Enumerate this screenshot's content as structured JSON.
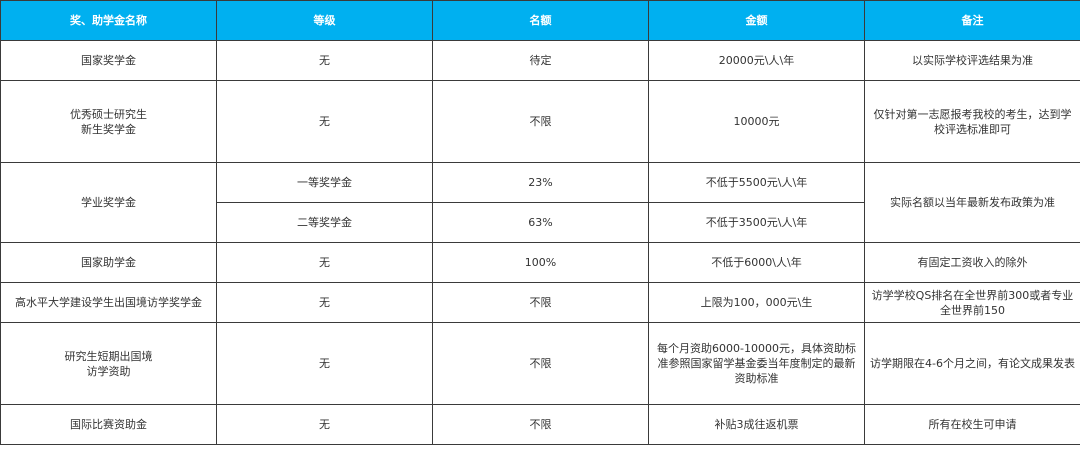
{
  "header_color": "#00b0f0",
  "headers": [
    "奖、助学金名称",
    "等级",
    "名额",
    "金额",
    "备注"
  ],
  "rows": [
    {
      "name": "国家奖学金",
      "level": "无",
      "quota": "待定",
      "amount": "20000元\\人\\年",
      "note": "以实际学校评选结果为准"
    },
    {
      "name_l1": "优秀硕士研究生",
      "name_l2": "新生奖学金",
      "level": "无",
      "quota": "不限",
      "amount": "10000元",
      "note": "仅针对第一志愿报考我校的考生，达到学校评选标准即可"
    },
    {
      "name": "学业奖学金",
      "note": "实际名额以当年最新发布政策为准",
      "sub": [
        {
          "level": "一等奖学金",
          "quota": "23%",
          "amount": "不低于5500元\\人\\年"
        },
        {
          "level": "二等奖学金",
          "quota": "63%",
          "amount": "不低于3500元\\人\\年"
        }
      ]
    },
    {
      "name": "国家助学金",
      "level": "无",
      "quota": "100%",
      "amount": "不低于6000\\人\\年",
      "note": "有固定工资收入的除外"
    },
    {
      "name": "高水平大学建设学生出国境访学奖学金",
      "level": "无",
      "quota": "不限",
      "amount": "上限为100，000元\\生",
      "note": "访学学校QS排名在全世界前300或者专业全世界前150"
    },
    {
      "name_l1": "研究生短期出国境",
      "name_l2": "访学资助",
      "level": "无",
      "quota": "不限",
      "amount": "每个月资助6000-10000元，具体资助标准参照国家留学基金委当年度制定的最新资助标准",
      "note": "访学期限在4-6个月之间，有论文成果发表"
    },
    {
      "name": "国际比赛资助金",
      "level": "无",
      "quota": "不限",
      "amount": "补贴3成往返机票",
      "note": "所有在校生可申请"
    }
  ]
}
